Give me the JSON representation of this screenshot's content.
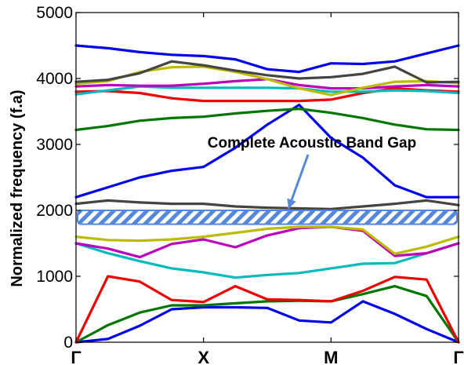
{
  "chart_data": {
    "type": "line",
    "ylabel": "Normalized frequency (f.a)",
    "xlabel": "",
    "title": "",
    "ylim": [
      0,
      5000
    ],
    "yticks": [
      0,
      1000,
      2000,
      3000,
      4000,
      5000
    ],
    "xticks": [
      {
        "label": "Γ",
        "pos": 0
      },
      {
        "label": "X",
        "pos": 1
      },
      {
        "label": "M",
        "pos": 2
      },
      {
        "label": "Γ",
        "pos": 3
      }
    ],
    "x": [
      0,
      0.25,
      0.5,
      0.75,
      1.0,
      1.25,
      1.5,
      1.75,
      2.0,
      2.25,
      2.5,
      2.75,
      3.0
    ],
    "series": [
      {
        "color": "#0000ee",
        "values": [
          0,
          50,
          250,
          500,
          530,
          530,
          520,
          330,
          300,
          620,
          430,
          200,
          0
        ]
      },
      {
        "color": "#007700",
        "values": [
          0,
          260,
          450,
          560,
          560,
          590,
          620,
          630,
          620,
          730,
          850,
          700,
          0
        ]
      },
      {
        "color": "#ee0000",
        "values": [
          0,
          1000,
          920,
          640,
          610,
          850,
          650,
          640,
          620,
          780,
          990,
          950,
          0
        ]
      },
      {
        "color": "#00bbbb",
        "values": [
          1500,
          1350,
          1230,
          1120,
          1060,
          980,
          1020,
          1050,
          1120,
          1190,
          1200,
          1350,
          1500
        ]
      },
      {
        "color": "#bb00bb",
        "values": [
          1500,
          1420,
          1290,
          1490,
          1560,
          1440,
          1620,
          1730,
          1750,
          1690,
          1310,
          1350,
          1500
        ]
      },
      {
        "color": "#bbbb00",
        "values": [
          1600,
          1550,
          1540,
          1560,
          1600,
          1660,
          1720,
          1750,
          1750,
          1710,
          1340,
          1450,
          1600
        ]
      },
      {
        "color": "#444444",
        "values": [
          2100,
          2150,
          2120,
          2100,
          2100,
          2060,
          2040,
          2030,
          2020,
          2060,
          2100,
          2150,
          2080
        ]
      },
      {
        "color": "#0000ee",
        "values": [
          2200,
          2350,
          2500,
          2600,
          2660,
          2950,
          3300,
          3600,
          3100,
          2800,
          2380,
          2200,
          2200
        ]
      },
      {
        "color": "#007700",
        "values": [
          3220,
          3280,
          3360,
          3400,
          3420,
          3470,
          3510,
          3540,
          3480,
          3400,
          3300,
          3230,
          3220
        ]
      },
      {
        "color": "#ee0000",
        "values": [
          3800,
          3810,
          3780,
          3700,
          3660,
          3660,
          3660,
          3660,
          3680,
          3780,
          3850,
          3820,
          3800
        ]
      },
      {
        "color": "#00bbbb",
        "values": [
          3760,
          3820,
          3880,
          3860,
          3860,
          3860,
          3860,
          3850,
          3800,
          3800,
          3820,
          3810,
          3780
        ]
      },
      {
        "color": "#bb00bb",
        "values": [
          3880,
          3900,
          3890,
          3890,
          3920,
          3960,
          3990,
          3900,
          3850,
          3850,
          3880,
          3900,
          3880
        ]
      },
      {
        "color": "#bbbb00",
        "values": [
          3920,
          3960,
          4100,
          4170,
          4180,
          4100,
          3990,
          3850,
          3750,
          3860,
          3950,
          3960,
          3930
        ]
      },
      {
        "color": "#444444",
        "values": [
          3950,
          3980,
          4080,
          4260,
          4200,
          4120,
          4050,
          4000,
          4020,
          4070,
          4180,
          3940,
          3950
        ]
      },
      {
        "color": "#0000ee",
        "values": [
          4500,
          4460,
          4400,
          4360,
          4340,
          4290,
          4140,
          4100,
          4230,
          4220,
          4260,
          4380,
          4500
        ]
      }
    ],
    "band_gap": {
      "label": "Complete Acoustic Band Gap",
      "from": 1790,
      "to": 2000,
      "color": "#5588dd"
    },
    "grid": false,
    "legend": "none"
  }
}
